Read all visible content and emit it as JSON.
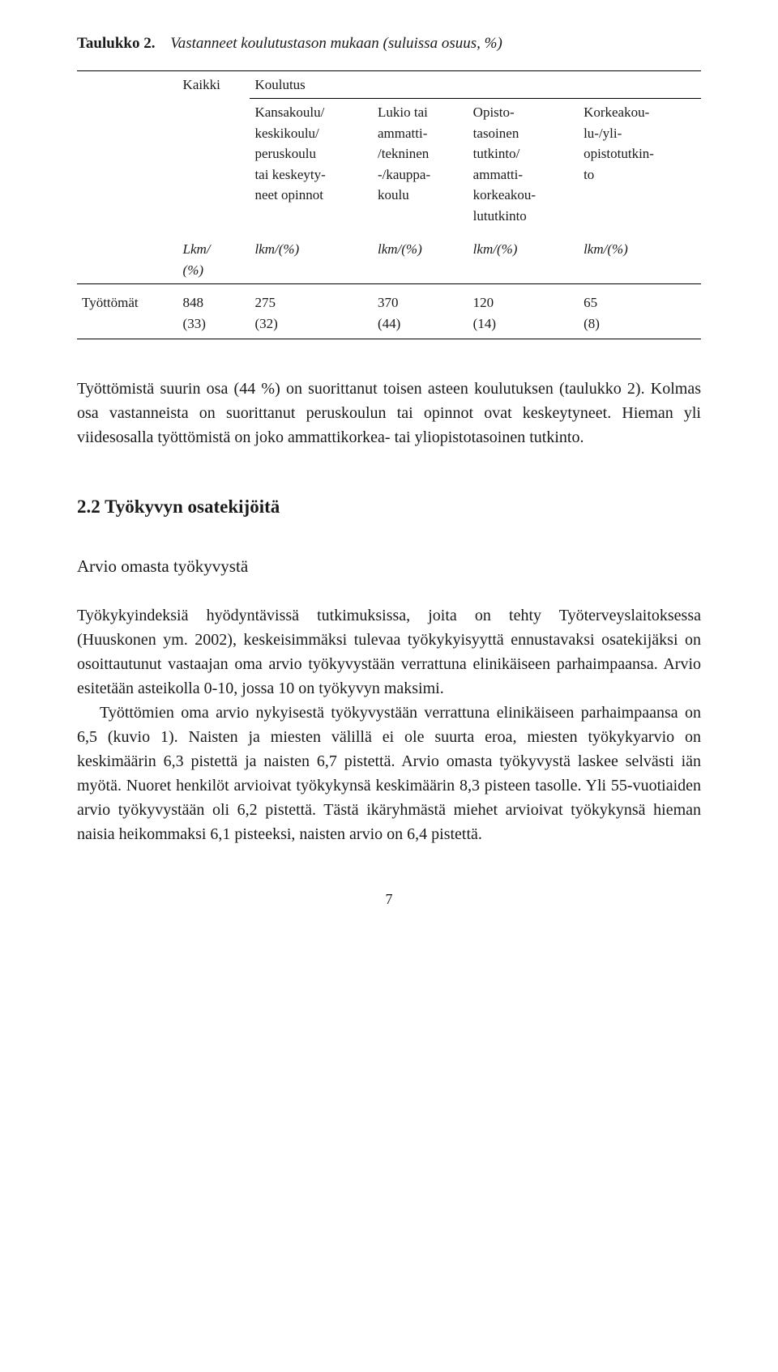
{
  "table": {
    "title_label": "Taulukko 2.",
    "title_desc": "Vastanneet koulutustason mukaan (suluissa osuus, %)",
    "col_headers_top": {
      "c1": "",
      "c2": "Kaikki",
      "c3": "Koulutus",
      "c4": "",
      "c5": "",
      "c6": ""
    },
    "col_headers_mid": {
      "c1": "",
      "c2": "",
      "c3": "Kansakoulu/\nkeskikoulu/\nperuskoulu\ntai keskeyty-\nneet opinnot",
      "c4": "Lukio tai\nammatti-\n/tekninen\n-/kauppa-\nkoulu",
      "c5": "Opisto-\ntasoinen\ntutkinto/\nammatti-\nkorkeakou-\nlututkinto",
      "c6": "Korkeakou-\nlu-/yli-\nopistotutkin-\nto"
    },
    "col_headers_unit": {
      "c1": "",
      "c2": "Lkm/\n(%)",
      "c3": "lkm/(%)",
      "c4": "lkm/(%)",
      "c5": "lkm/(%)",
      "c6": "lkm/(%)"
    },
    "row": {
      "label": "Työttömät",
      "c2": "848\n(33)",
      "c3": "275\n(32)",
      "c4": "370\n(44)",
      "c5": "120\n(14)",
      "c6": "65\n(8)"
    }
  },
  "para1": "Työttömistä suurin osa (44 %) on suorittanut toisen asteen koulutuksen (taulukko 2). Kolmas osa vastanneista on suorittanut peruskoulun tai opinnot ovat keskeytyneet. Hieman yli viidesosalla työttömistä on joko ammattikorkea- tai yliopistotasoinen tutkinto.",
  "section_heading": "2.2  Työkyvyn osatekijöitä",
  "subheading": "Arvio omasta työkyvystä",
  "para2": "Työkykyindeksiä hyödyntävissä tutkimuksissa, joita on tehty Työterveyslaitoksessa (Huuskonen ym. 2002), keskeisimmäksi tulevaa työkykyisyyttä ennustavaksi osatekijäksi on osoittautunut vastaajan oma arvio työkyvystään verrattuna elinikäiseen parhaimpaansa. Arvio esitetään asteikolla 0-10, jossa 10 on työkyvyn maksimi.",
  "para3": "Työttömien oma arvio nykyisestä työkyvystään verrattuna elinikäiseen parhaimpaansa on 6,5 (kuvio 1). Naisten ja miesten välillä ei ole suurta eroa, miesten työkykyarvio on keskimäärin 6,3 pistettä ja naisten 6,7 pistettä. Arvio omasta työkyvystä laskee selvästi iän myötä. Nuoret henkilöt arvioivat työkykynsä keskimäärin 8,3 pisteen tasolle. Yli 55-vuotiaiden arvio työkyvystään oli 6,2 pistettä. Tästä ikäryhmästä miehet arvioivat työkykynsä hieman naisia heikommaksi 6,1 pisteeksi, naisten arvio on 6,4 pistettä.",
  "page_number": "7"
}
